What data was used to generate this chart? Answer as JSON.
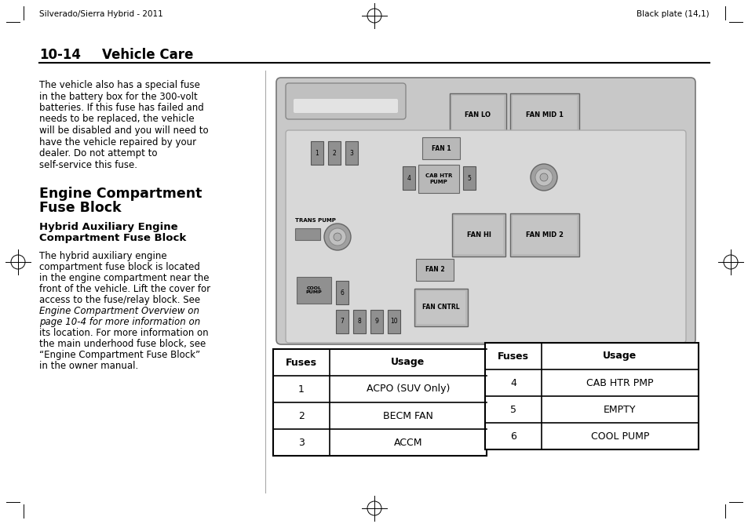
{
  "page_header_left": "Silverado/Sierra Hybrid - 2011",
  "page_header_right": "Black plate (14,1)",
  "section_title_num": "10-14",
  "section_title_text": "Vehicle Care",
  "bg_color": "#ffffff",
  "text_color": "#000000",
  "body_text_1_lines": [
    "The vehicle also has a special fuse",
    "in the battery box for the 300-volt",
    "batteries. If this fuse has failed and",
    "needs to be replaced, the vehicle",
    "will be disabled and you will need to",
    "have the vehicle repaired by your",
    "dealer. Do not attempt to",
    "self-service this fuse."
  ],
  "section_heading_lines": [
    "Engine Compartment",
    "Fuse Block"
  ],
  "sub_heading_lines": [
    "Hybrid Auxiliary Engine",
    "Compartment Fuse Block"
  ],
  "body_text_2_lines": [
    "The hybrid auxiliary engine",
    "compartment fuse block is located",
    "in the engine compartment near the",
    "front of the vehicle. Lift the cover for",
    "access to the fuse/relay block. See",
    "Engine Compartment Overview on",
    "page 10-4 for more information on",
    "its location. For more information on",
    "the main underhood fuse block, see",
    "“Engine Compartment Fuse Block”",
    "in the owner manual."
  ],
  "body_text_2_italic_lines": [
    5,
    6
  ],
  "table1_headers": [
    "Fuses",
    "Usage"
  ],
  "table1_rows": [
    [
      "1",
      "ACPO (SUV Only)"
    ],
    [
      "2",
      "BECM FAN"
    ],
    [
      "3",
      "ACCM"
    ]
  ],
  "table2_headers": [
    "Fuses",
    "Usage"
  ],
  "table2_rows": [
    [
      "4",
      "CAB HTR PMP"
    ],
    [
      "5",
      "EMPTY"
    ],
    [
      "6",
      "COOL PUMP"
    ]
  ],
  "diag_bg": "#d4d4d4",
  "diag_inner_bg": "#c8c8c8",
  "fuse_bg": "#b8b8b8",
  "relay_bg": "#b0b0b0",
  "large_fuse_bg": "#c0c0c0"
}
